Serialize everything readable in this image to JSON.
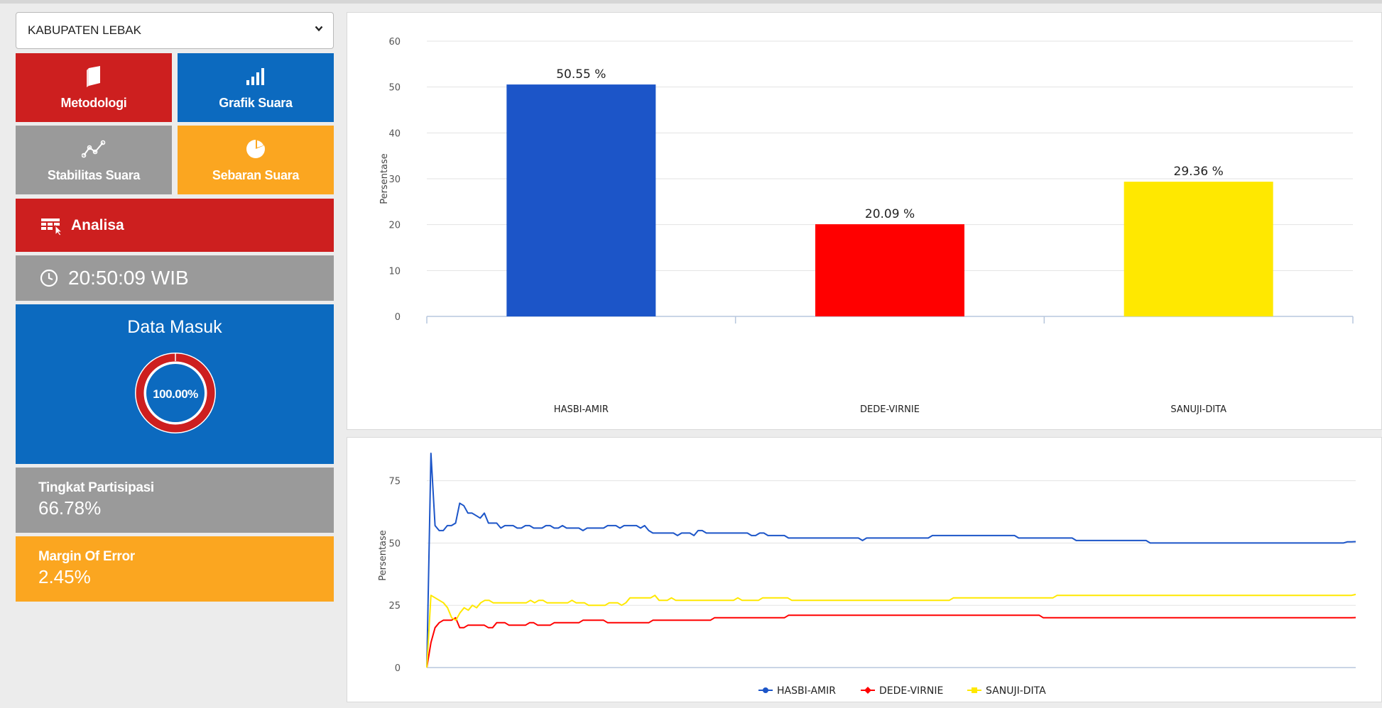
{
  "region_select": {
    "value": "KABUPATEN LEBAK"
  },
  "tiles": {
    "metodologi": "Metodologi",
    "grafik": "Grafik Suara",
    "stabilitas": "Stabilitas Suara",
    "sebaran": "Sebaran Suara",
    "analisa": "Analisa"
  },
  "clock": {
    "time": "20:50:09 WIB"
  },
  "data_masuk": {
    "title": "Data Masuk",
    "percent_label": "100.00%",
    "fraction": 1.0
  },
  "partisipasi": {
    "label": "Tingkat Partisipasi",
    "value": "66.78%"
  },
  "margin_error": {
    "label": "Margin Of Error",
    "value": "2.45%"
  },
  "colors": {
    "red": "#cd1f1f",
    "blue": "#0c6abf",
    "gray": "#9a9a9a",
    "orange": "#fba620"
  },
  "icons": {
    "metodologi": "book-icon",
    "grafik": "signal-bars-icon",
    "stabilitas": "line-chart-icon",
    "sebaran": "pie-chart-icon",
    "analisa": "table-cursor-icon",
    "clock": "clock-icon",
    "select": "chevron-down-icon"
  },
  "chart_data": [
    {
      "type": "bar",
      "categories": [
        "HASBI-AMIR",
        "DEDE-VIRNIE",
        "SANUJI-DITA"
      ],
      "values": [
        50.55,
        20.09,
        29.36
      ],
      "data_labels": [
        "50.55 %",
        "20.09 %",
        "29.36 %"
      ],
      "colors": [
        "#1c55c8",
        "#ff0000",
        "#ffe800"
      ],
      "ylabel": "Persentase",
      "ylim": [
        0,
        60
      ],
      "yticks": [
        0,
        10,
        20,
        30,
        40,
        50,
        60
      ],
      "grid": true
    },
    {
      "type": "line",
      "ylabel": "Persentase",
      "ylim": [
        0,
        90
      ],
      "yticks": [
        0,
        25,
        50,
        75
      ],
      "legend_position": "bottom",
      "series": [
        {
          "name": "HASBI-AMIR",
          "color": "#1c55c8",
          "values": [
            0,
            86,
            57,
            55,
            55,
            57,
            57,
            58,
            66,
            65,
            62,
            62,
            61,
            60,
            62,
            58,
            58,
            58,
            56,
            57,
            57,
            57,
            56,
            56,
            57,
            57,
            56,
            56,
            56,
            57,
            57,
            56,
            56,
            57,
            56,
            56,
            56,
            56,
            55,
            56,
            56,
            56,
            56,
            56,
            57,
            57,
            57,
            56,
            57,
            57,
            57,
            57,
            56,
            57,
            55,
            54,
            54,
            54,
            54,
            54,
            54,
            53,
            54,
            54,
            54,
            53,
            55,
            55,
            54,
            54,
            54,
            54,
            54,
            54,
            54,
            54,
            54,
            54,
            54,
            53,
            53,
            54,
            54,
            53,
            53,
            53,
            53,
            53,
            52,
            52,
            52,
            52,
            52,
            52,
            52,
            52,
            52,
            52,
            52,
            52,
            52,
            52,
            52,
            52,
            52,
            52,
            51,
            52,
            52,
            52,
            52,
            52,
            52,
            52,
            52,
            52,
            52,
            52,
            52,
            52,
            52,
            52,
            52,
            53,
            53,
            53,
            53,
            53,
            53,
            53,
            53,
            53,
            53,
            53,
            53,
            53,
            53,
            53,
            53,
            53,
            53,
            53,
            53,
            53,
            52,
            52,
            52,
            52,
            52,
            52,
            52,
            52,
            52,
            52,
            52,
            52,
            52,
            52,
            51,
            51,
            51,
            51,
            51,
            51,
            51,
            51,
            51,
            51,
            51,
            51,
            51,
            51,
            51,
            51,
            51,
            51,
            50,
            50,
            50,
            50,
            50,
            50,
            50,
            50,
            50,
            50,
            50,
            50,
            50,
            50,
            50,
            50,
            50,
            50,
            50,
            50,
            50,
            50,
            50,
            50,
            50,
            50,
            50,
            50,
            50,
            50,
            50,
            50,
            50,
            50,
            50,
            50,
            50,
            50,
            50,
            50,
            50,
            50,
            50,
            50,
            50,
            50,
            50,
            50,
            50.5,
            50.5,
            50.55
          ]
        },
        {
          "name": "DEDE-VIRNIE",
          "color": "#ff0000",
          "values": [
            0,
            10,
            16,
            18,
            19,
            19,
            19,
            20,
            16,
            16,
            17,
            17,
            17,
            17,
            17,
            16,
            16,
            18,
            18,
            18,
            17,
            17,
            17,
            17,
            17,
            18,
            18,
            17,
            17,
            17,
            17,
            18,
            18,
            18,
            18,
            18,
            18,
            18,
            19,
            19,
            19,
            19,
            19,
            19,
            18,
            18,
            18,
            18,
            18,
            18,
            18,
            18,
            18,
            18,
            18,
            19,
            19,
            19,
            19,
            19,
            19,
            19,
            19,
            19,
            19,
            19,
            19,
            19,
            19,
            19,
            20,
            20,
            20,
            20,
            20,
            20,
            20,
            20,
            20,
            20,
            20,
            20,
            20,
            20,
            20,
            20,
            20,
            20,
            21,
            21,
            21,
            21,
            21,
            21,
            21,
            21,
            21,
            21,
            21,
            21,
            21,
            21,
            21,
            21,
            21,
            21,
            21,
            21,
            21,
            21,
            21,
            21,
            21,
            21,
            21,
            21,
            21,
            21,
            21,
            21,
            21,
            21,
            21,
            21,
            21,
            21,
            21,
            21,
            21,
            21,
            21,
            21,
            21,
            21,
            21,
            21,
            21,
            21,
            21,
            21,
            21,
            21,
            21,
            21,
            21,
            21,
            21,
            21,
            21,
            21,
            20,
            20,
            20,
            20,
            20,
            20,
            20,
            20,
            20,
            20,
            20,
            20,
            20,
            20,
            20,
            20,
            20,
            20,
            20,
            20,
            20,
            20,
            20,
            20,
            20,
            20,
            20,
            20,
            20,
            20,
            20,
            20,
            20,
            20,
            20,
            20,
            20,
            20,
            20,
            20,
            20,
            20,
            20,
            20,
            20,
            20,
            20,
            20,
            20,
            20,
            20,
            20,
            20,
            20,
            20,
            20,
            20,
            20,
            20,
            20,
            20,
            20,
            20,
            20,
            20,
            20,
            20,
            20,
            20,
            20,
            20,
            20,
            20,
            20,
            20,
            20,
            20.09
          ]
        },
        {
          "name": "SANUJI-DITA",
          "color": "#ffe800",
          "values": [
            0,
            29,
            28,
            27,
            26,
            24,
            20,
            19,
            22,
            24,
            23,
            25,
            24,
            26,
            27,
            27,
            26,
            26,
            26,
            26,
            26,
            26,
            26,
            26,
            26,
            27,
            26,
            27,
            27,
            26,
            26,
            26,
            26,
            26,
            26,
            27,
            26,
            26,
            26,
            25,
            25,
            25,
            25,
            25,
            26,
            26,
            26,
            25,
            26,
            28,
            28,
            28,
            28,
            28,
            28,
            29,
            27,
            27,
            27,
            28,
            27,
            27,
            27,
            27,
            27,
            27,
            27,
            27,
            27,
            27,
            27,
            27,
            27,
            27,
            27,
            28,
            27,
            27,
            27,
            27,
            27,
            28,
            28,
            28,
            28,
            28,
            28,
            28,
            27,
            27,
            27,
            27,
            27,
            27,
            27,
            27,
            27,
            27,
            27,
            27,
            27,
            27,
            27,
            27,
            27,
            27,
            27,
            27,
            27,
            27,
            27,
            27,
            27,
            27,
            27,
            27,
            27,
            27,
            27,
            27,
            27,
            27,
            27,
            27,
            27,
            27,
            27,
            28,
            28,
            28,
            28,
            28,
            28,
            28,
            28,
            28,
            28,
            28,
            28,
            28,
            28,
            28,
            28,
            28,
            28,
            28,
            28,
            28,
            28,
            28,
            28,
            28,
            29,
            29,
            29,
            29,
            29,
            29,
            29,
            29,
            29,
            29,
            29,
            29,
            29,
            29,
            29,
            29,
            29,
            29,
            29,
            29,
            29,
            29,
            29,
            29,
            29,
            29,
            29,
            29,
            29,
            29,
            29,
            29,
            29,
            29,
            29,
            29,
            29,
            29,
            29,
            29,
            29,
            29,
            29,
            29,
            29,
            29,
            29,
            29,
            29,
            29,
            29,
            29,
            29,
            29,
            29,
            29,
            29,
            29,
            29,
            29,
            29,
            29,
            29,
            29,
            29,
            29,
            29,
            29,
            29,
            29,
            29,
            29,
            29.36
          ]
        }
      ]
    }
  ]
}
